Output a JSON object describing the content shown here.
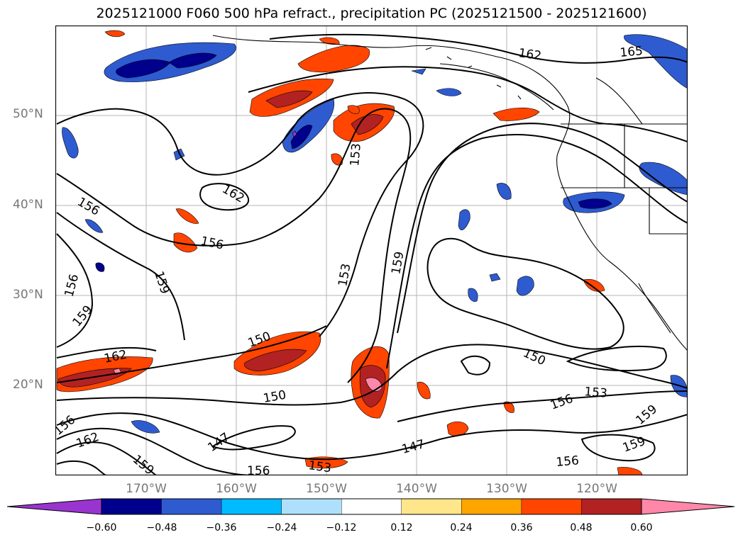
{
  "title": "2025121000 F060 500 hPa refract., precipitation PC (2025121500 - 2025121600)",
  "map": {
    "lat_labels": [
      "50°N",
      "40°N",
      "30°N",
      "20°N"
    ],
    "lon_labels": [
      "170°W",
      "160°W",
      "150°W",
      "140°W",
      "130°W",
      "120°W"
    ],
    "contour_labels": [
      "162",
      "165",
      "153",
      "162",
      "156",
      "156",
      "159",
      "153",
      "159",
      "156",
      "159",
      "150",
      "162",
      "150",
      "150",
      "153",
      "156",
      "159",
      "147",
      "162",
      "147",
      "159",
      "156",
      "153",
      "156",
      "159",
      "156"
    ]
  },
  "colorbar": {
    "tick_labels": [
      "−0.60",
      "−0.48",
      "−0.36",
      "−0.24",
      "−0.12",
      "0.12",
      "0.24",
      "0.36",
      "0.48",
      "0.60"
    ],
    "colors": [
      "#9a34cf",
      "#00008c",
      "#2e5bd0",
      "#00bbff",
      "#aee0fb",
      "#ffffff",
      "#ffe68a",
      "#ffa500",
      "#ff4500",
      "#b22222",
      "#ff88aa"
    ]
  }
}
